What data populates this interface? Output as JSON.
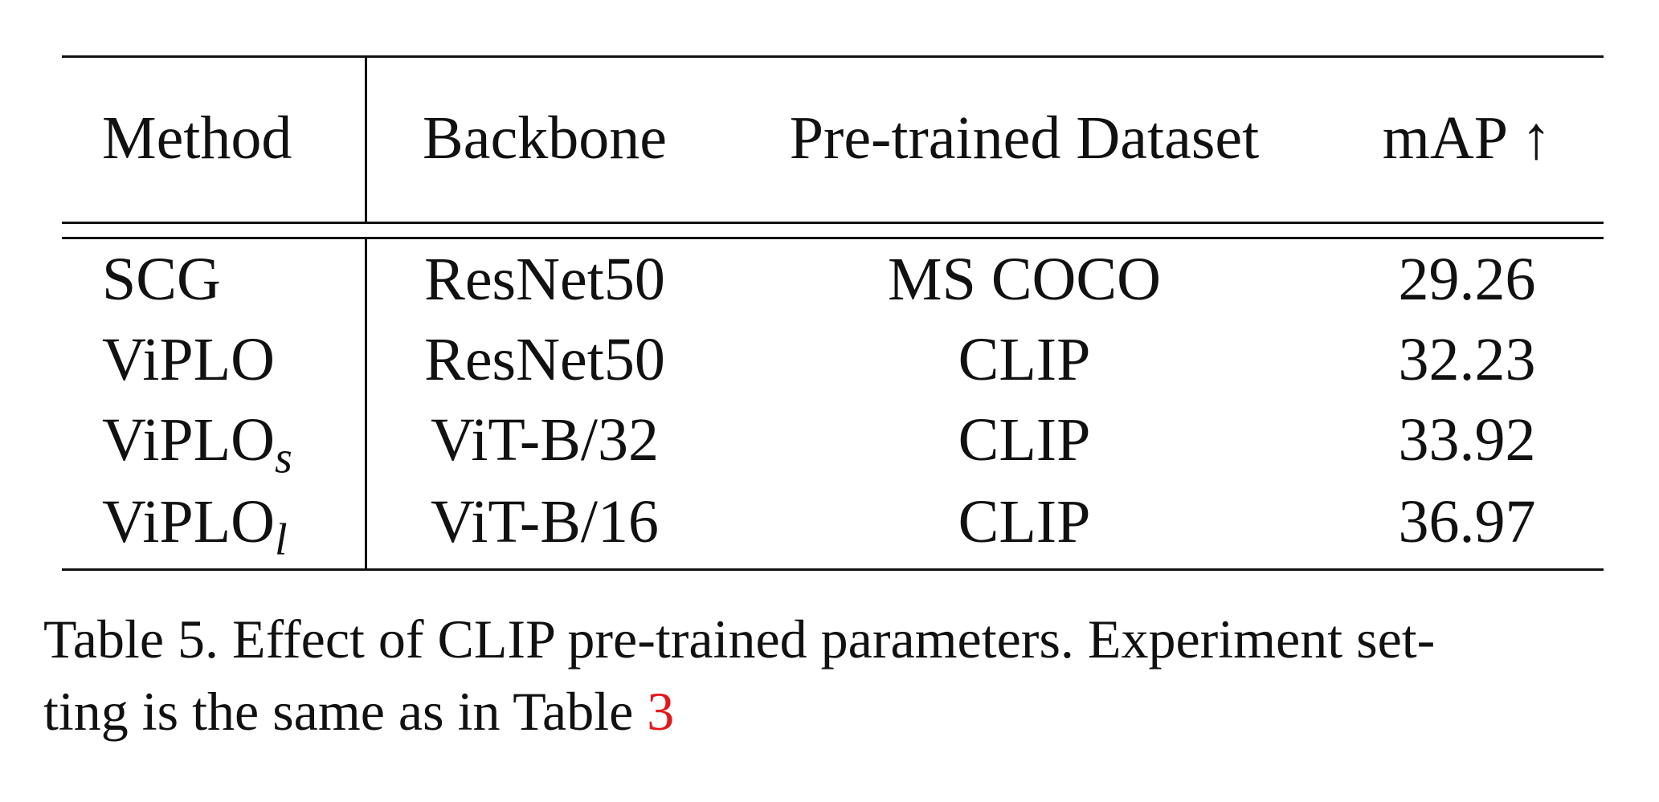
{
  "table": {
    "headers": {
      "method": "Method",
      "backbone": "Backbone",
      "dataset": "Pre-trained Dataset",
      "map": "mAP ↑"
    },
    "rows": [
      {
        "method": "SCG",
        "method_sub": "",
        "backbone": "ResNet50",
        "dataset": "MS COCO",
        "map": "29.26"
      },
      {
        "method": "ViPLO",
        "method_sub": "",
        "backbone": "ResNet50",
        "dataset": "CLIP",
        "map": "32.23"
      },
      {
        "method": "ViPLO",
        "method_sub": "s",
        "backbone": "ViT-B/32",
        "dataset": "CLIP",
        "map": "33.92"
      },
      {
        "method": "ViPLO",
        "method_sub": "l",
        "backbone": "ViT-B/16",
        "dataset": "CLIP",
        "map": "36.97"
      }
    ]
  },
  "caption": {
    "line1": "Table 5.  Effect of CLIP pre-trained parameters.  Experiment set-",
    "line2": "ting is the same as in Table ",
    "ref": "3",
    "ref_color": "#e8161b"
  }
}
